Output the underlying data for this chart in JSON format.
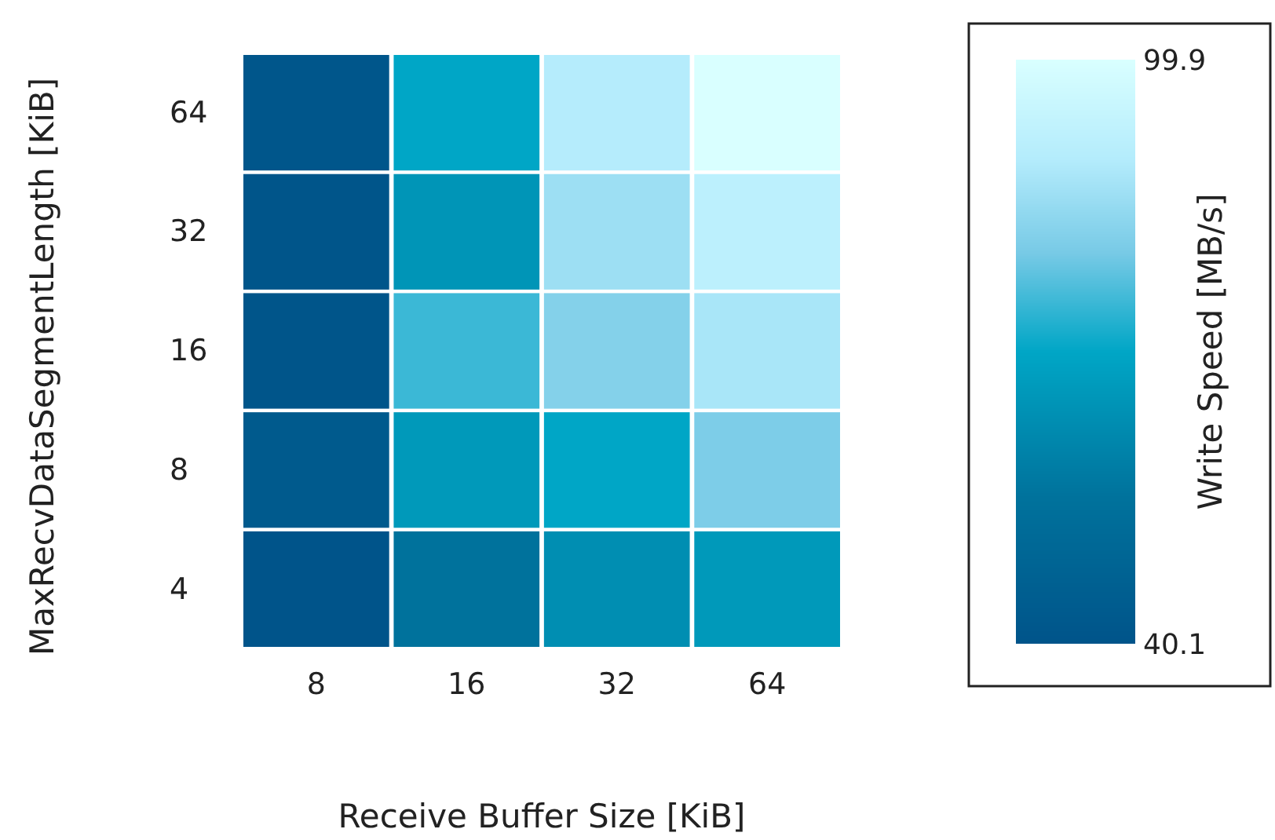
{
  "chart_data": {
    "type": "heatmap",
    "xlabel": "Receive Buffer Size [KiB]",
    "ylabel": "MaxRecvDataSegmentLength [KiB]",
    "clabel": "Write Speed [MB/s]",
    "categories": [
      "8",
      "16",
      "32",
      "64"
    ],
    "y_categories": [
      "64",
      "32",
      "16",
      "8",
      "4"
    ],
    "cells": [
      [
        41,
        70,
        90,
        99.9
      ],
      [
        40.5,
        65,
        86,
        92
      ],
      [
        40.5,
        75,
        82,
        88
      ],
      [
        43,
        66,
        70,
        81
      ],
      [
        40.1,
        55,
        63,
        66
      ]
    ],
    "clim": [
      40.1,
      99.9
    ],
    "cticks": [
      40.1,
      99.9
    ]
  }
}
